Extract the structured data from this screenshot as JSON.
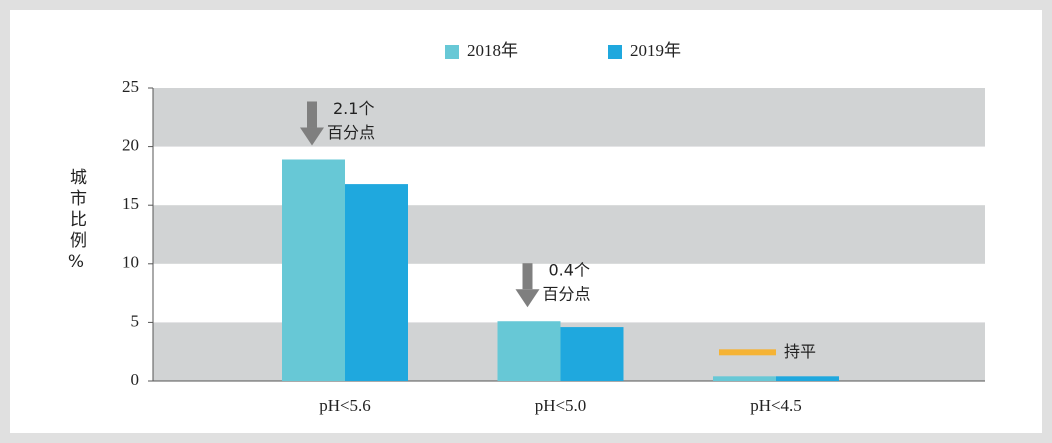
{
  "chart_data": {
    "type": "bar",
    "categories": [
      "pH<5.6",
      "pH<5.0",
      "pH<4.5"
    ],
    "series": [
      {
        "name": "2018年",
        "color": "#67c8d6",
        "values": [
          18.9,
          5.1,
          0.4
        ]
      },
      {
        "name": "2019年",
        "color": "#1fa8de",
        "values": [
          16.8,
          4.6,
          0.4
        ]
      }
    ],
    "ylabel": "城市比例%",
    "ylim": [
      0,
      25
    ],
    "yticks": [
      0,
      5,
      10,
      15,
      20,
      25
    ],
    "grid": true,
    "annotations": [
      {
        "lines": [
          "2.1个",
          "百分点"
        ]
      },
      {
        "lines": [
          "0.4个",
          "百分点"
        ]
      },
      {
        "lines": [
          "持平"
        ]
      }
    ]
  }
}
